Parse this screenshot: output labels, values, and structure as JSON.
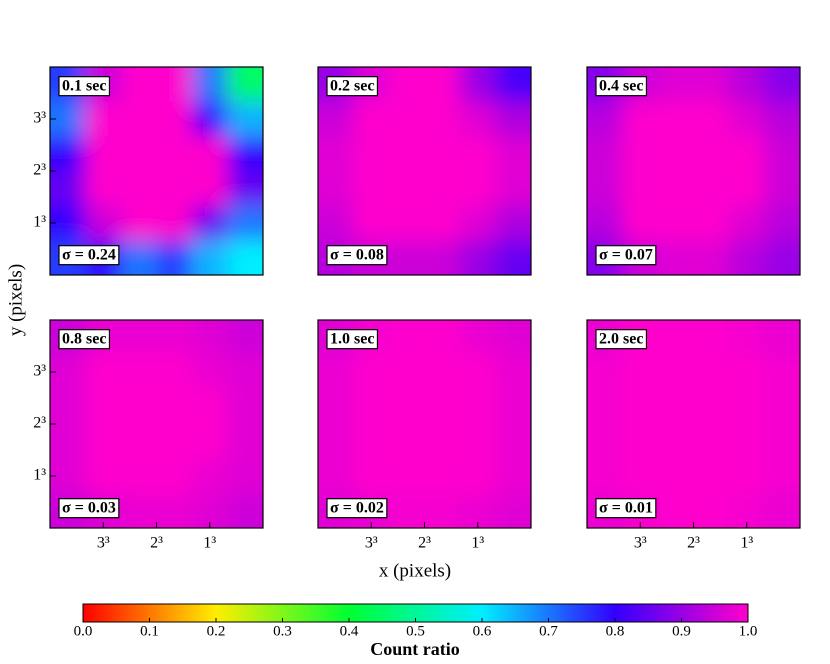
{
  "chart_data": [
    {
      "type": "heatmap",
      "title": "0.1 sec",
      "annotation": "σ = 0.24",
      "values": [
        [
          0.75,
          0.95,
          1.0,
          1.0,
          0.7,
          0.45
        ],
        [
          0.7,
          1.0,
          1.0,
          1.0,
          0.8,
          0.65
        ],
        [
          0.8,
          1.0,
          1.0,
          1.0,
          1.0,
          0.8
        ],
        [
          0.85,
          1.0,
          1.0,
          1.0,
          1.0,
          0.85
        ],
        [
          0.8,
          0.95,
          1.0,
          1.0,
          0.85,
          0.7
        ],
        [
          0.75,
          0.8,
          0.7,
          0.75,
          0.65,
          0.6
        ]
      ],
      "xlim": [
        4,
        0
      ],
      "ylim": [
        0,
        4
      ],
      "yticks": [
        {
          "value": 1,
          "label": "1³"
        },
        {
          "value": 2,
          "label": "2³"
        },
        {
          "value": 3,
          "label": "3³"
        }
      ]
    },
    {
      "type": "heatmap",
      "title": "0.2 sec",
      "annotation": "σ = 0.08",
      "values": [
        [
          0.9,
          0.97,
          1.0,
          1.0,
          0.9,
          0.82
        ],
        [
          0.95,
          1.0,
          1.0,
          1.0,
          0.97,
          0.92
        ],
        [
          0.97,
          1.0,
          1.0,
          1.0,
          1.0,
          0.97
        ],
        [
          0.97,
          1.0,
          1.0,
          1.0,
          1.0,
          0.97
        ],
        [
          0.95,
          1.0,
          1.0,
          1.0,
          0.97,
          0.92
        ],
        [
          0.93,
          0.95,
          0.95,
          0.95,
          0.9,
          0.85
        ]
      ],
      "xlim": [
        4,
        0
      ],
      "ylim": [
        0,
        4
      ]
    },
    {
      "type": "heatmap",
      "title": "0.4 sec",
      "annotation": "σ = 0.07",
      "values": [
        [
          0.88,
          0.95,
          0.97,
          0.97,
          0.93,
          0.88
        ],
        [
          0.93,
          1.0,
          1.0,
          1.0,
          0.97,
          0.93
        ],
        [
          0.95,
          1.0,
          1.0,
          1.0,
          1.0,
          0.95
        ],
        [
          0.95,
          1.0,
          1.0,
          1.0,
          1.0,
          0.95
        ],
        [
          0.93,
          1.0,
          1.0,
          1.0,
          0.97,
          0.93
        ],
        [
          0.88,
          0.95,
          0.97,
          0.97,
          0.93,
          0.9
        ]
      ],
      "xlim": [
        4,
        0
      ],
      "ylim": [
        0,
        4
      ]
    },
    {
      "type": "heatmap",
      "title": "0.8 sec",
      "annotation": "σ = 0.03",
      "values": [
        [
          0.95,
          0.98,
          0.98,
          0.98,
          0.97,
          0.95
        ],
        [
          0.97,
          1.0,
          1.0,
          1.0,
          0.98,
          0.97
        ],
        [
          0.97,
          1.0,
          1.0,
          1.0,
          1.0,
          0.97
        ],
        [
          0.97,
          1.0,
          1.0,
          1.0,
          1.0,
          0.97
        ],
        [
          0.97,
          1.0,
          1.0,
          1.0,
          0.98,
          0.97
        ],
        [
          0.95,
          0.97,
          0.98,
          0.98,
          0.97,
          0.95
        ]
      ],
      "xlim": [
        4,
        0
      ],
      "ylim": [
        0,
        4
      ],
      "xticks": [
        {
          "value": 3,
          "label": "3³"
        },
        {
          "value": 2,
          "label": "2³"
        },
        {
          "value": 1,
          "label": "1³"
        }
      ],
      "yticks": [
        {
          "value": 1,
          "label": "1³"
        },
        {
          "value": 2,
          "label": "2³"
        },
        {
          "value": 3,
          "label": "3³"
        }
      ]
    },
    {
      "type": "heatmap",
      "title": "1.0 sec",
      "annotation": "σ = 0.02",
      "values": [
        [
          0.97,
          0.99,
          1.0,
          1.0,
          0.98,
          0.97
        ],
        [
          0.98,
          1.0,
          1.0,
          1.0,
          1.0,
          0.98
        ],
        [
          0.98,
          1.0,
          1.0,
          1.0,
          1.0,
          0.98
        ],
        [
          0.98,
          1.0,
          1.0,
          1.0,
          1.0,
          0.98
        ],
        [
          0.98,
          1.0,
          1.0,
          1.0,
          1.0,
          0.98
        ],
        [
          0.97,
          0.98,
          0.99,
          0.99,
          0.98,
          0.97
        ]
      ],
      "xlim": [
        4,
        0
      ],
      "ylim": [
        0,
        4
      ],
      "xticks": [
        {
          "value": 3,
          "label": "3³"
        },
        {
          "value": 2,
          "label": "2³"
        },
        {
          "value": 1,
          "label": "1³"
        }
      ]
    },
    {
      "type": "heatmap",
      "title": "2.0 sec",
      "annotation": "σ = 0.01",
      "values": [
        [
          0.98,
          1.0,
          1.0,
          1.0,
          0.99,
          0.98
        ],
        [
          0.99,
          1.0,
          1.0,
          1.0,
          1.0,
          0.99
        ],
        [
          0.99,
          1.0,
          1.0,
          1.0,
          1.0,
          0.99
        ],
        [
          0.99,
          1.0,
          1.0,
          1.0,
          1.0,
          0.99
        ],
        [
          0.99,
          1.0,
          1.0,
          1.0,
          1.0,
          0.99
        ],
        [
          0.98,
          0.99,
          1.0,
          1.0,
          0.99,
          0.98
        ]
      ],
      "xlim": [
        4,
        0
      ],
      "ylim": [
        0,
        4
      ],
      "xticks": [
        {
          "value": 3,
          "label": "3³"
        },
        {
          "value": 2,
          "label": "2³"
        },
        {
          "value": 1,
          "label": "1³"
        }
      ]
    }
  ],
  "xlabel": "x (pixels)",
  "ylabel": "y (pixels)",
  "colorbar": {
    "label": "Count ratio",
    "lim": [
      0,
      1
    ],
    "colors": [
      "#ff0000",
      "#ffee00",
      "#00ff33",
      "#00eeff",
      "#3300ff",
      "#ff00cc"
    ],
    "ticks": [
      {
        "value": 0,
        "label": "0.0"
      },
      0.1,
      0.2,
      0.3,
      0.4,
      0.5,
      0.6,
      0.7,
      0.8,
      0.9,
      {
        "value": 1,
        "label": "1.0"
      }
    ]
  }
}
